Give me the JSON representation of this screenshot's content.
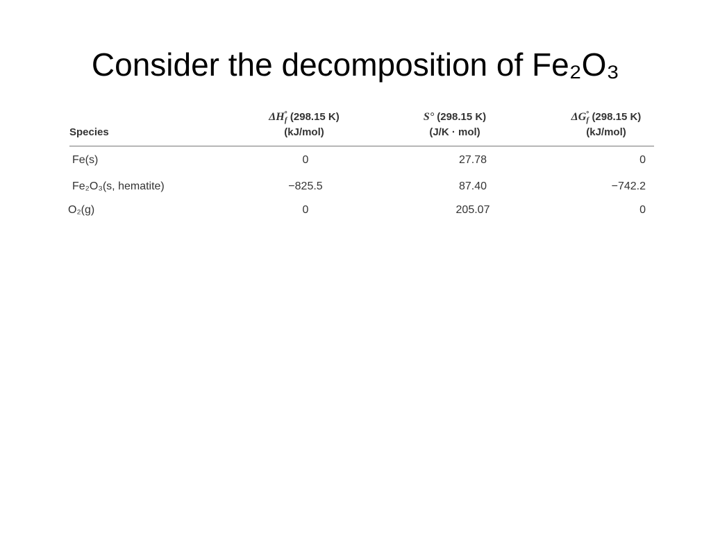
{
  "title": "Consider the decomposition of Fe₂O₃",
  "table": {
    "header": [
      {
        "label": "Species"
      },
      {
        "symbol": "ΔH",
        "sup": "°",
        "sub": "f",
        "rest": "(298.15 K)",
        "unit": "(kJ/mol)"
      },
      {
        "symbol": "S°",
        "rest": "(298.15 K)",
        "unit": "(J/K · mol)"
      },
      {
        "symbol": "ΔG",
        "sup": "°",
        "sub": "f",
        "rest": "(298.15 K)",
        "unit": "(kJ/mol)"
      }
    ],
    "rows": [
      [
        "Fe(s)",
        "0",
        "27.78",
        "0"
      ],
      [
        "Fe₂O₃(s, hematite)",
        "−825.5",
        "87.40",
        "−742.2"
      ],
      [
        "O₂(g)",
        "0",
        "205.07",
        "0"
      ]
    ]
  }
}
